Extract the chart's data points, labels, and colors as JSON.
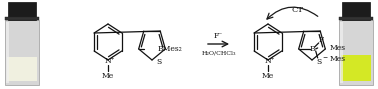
{
  "figsize": [
    3.78,
    0.89
  ],
  "dpi": 100,
  "text_color": "#111111",
  "reaction_arrow_label": "F⁻",
  "reaction_arrow_sublabel": "H₂O/CHCl₃",
  "ct_label": "CT",
  "vial_left_liquid": "#f0f0e0",
  "vial_right_liquid": "#d4e825",
  "vial_cap": "#1a1a1a",
  "vial_body": "#d8d8d8",
  "vial_glass_highlight": "#eeeeee",
  "bond_color": "#1a1a1a"
}
